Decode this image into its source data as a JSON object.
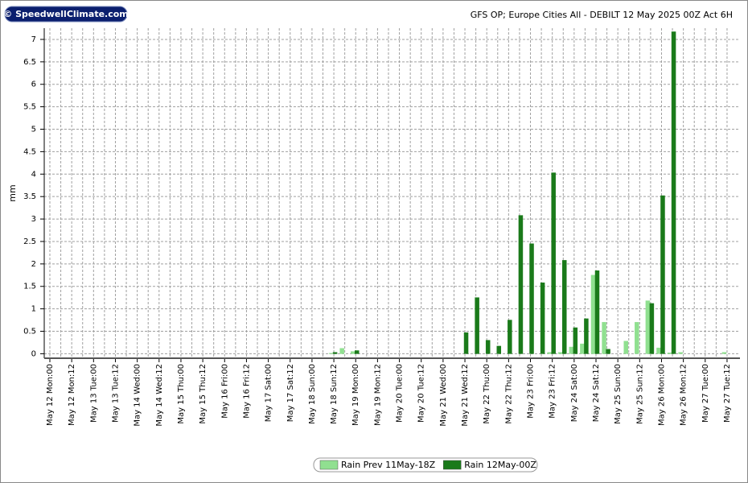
{
  "logo": "© SpeedwellClimate.com",
  "chart_data": {
    "type": "bar",
    "title": "GFS OP; Europe Cities All - DEBILT 12 May 2025 00Z Act 6H",
    "ylabel": "mm",
    "categories": [
      "May 12 Mon:00",
      null,
      "May 12 Mon:12",
      null,
      "May 13 Tue:00",
      null,
      "May 13 Tue:12",
      null,
      "May 14 Wed:00",
      null,
      "May 14 Wed:12",
      null,
      "May 15 Thu:00",
      null,
      "May 15 Thu:12",
      null,
      "May 16 Fri:00",
      null,
      "May 16 Fri:12",
      null,
      "May 17 Sat:00",
      null,
      "May 17 Sat:12",
      null,
      "May 18 Sun:00",
      null,
      "May 18 Sun:12",
      null,
      "May 19 Mon:00",
      null,
      "May 19 Mon:12",
      null,
      "May 20 Tue:00",
      null,
      "May 20 Tue:12",
      null,
      "May 21 Wed:00",
      null,
      "May 21 Wed:12",
      null,
      "May 22 Thu:00",
      null,
      "May 22 Thu:12",
      null,
      "May 23 Fri:00",
      null,
      "May 23 Fri:12",
      null,
      "May 24 Sat:00",
      null,
      "May 24 Sat:12",
      null,
      "May 25 Sun:00",
      null,
      "May 25 Sun:12",
      null,
      "May 26 Mon:00",
      null,
      "May 26 Mon:12",
      null,
      "May 27 Tue:00",
      null,
      "May 27 Tue:12"
    ],
    "series": [
      {
        "name": "Rain Prev 11May-18Z",
        "color": "#90e090",
        "values": [
          0,
          0,
          0,
          0,
          0,
          0,
          0,
          0,
          0,
          0,
          0,
          0,
          0,
          0,
          0,
          0,
          0,
          0,
          0,
          0,
          0,
          0,
          0,
          0,
          0,
          0,
          0.01,
          0.12,
          0.05,
          0,
          0,
          0,
          0,
          0,
          0,
          0,
          0,
          0,
          0,
          0,
          0,
          0,
          0,
          0,
          0,
          0,
          0.03,
          0.03,
          0.15,
          0.22,
          1.75,
          0.7,
          0,
          0.28,
          0.7,
          1.18,
          0.13,
          0.02,
          0.03,
          0,
          0,
          0,
          0.03
        ]
      },
      {
        "name": "Rain 12May-00Z",
        "color": "#1a7a1a",
        "values": [
          0,
          0,
          0,
          0,
          0,
          0,
          0,
          0,
          0,
          0,
          0,
          0,
          0,
          0,
          0,
          0,
          0,
          0,
          0,
          0,
          0,
          0,
          0,
          0,
          0,
          0,
          0.03,
          0,
          0.07,
          0,
          0,
          0,
          0,
          0,
          0,
          0,
          0,
          0,
          0.47,
          1.25,
          0.3,
          0.17,
          0.75,
          3.08,
          2.45,
          1.58,
          4.03,
          2.08,
          0.58,
          0.78,
          1.85,
          0.1,
          0,
          0,
          0,
          1.12,
          3.52,
          7.17,
          0,
          null,
          null,
          null,
          null
        ]
      }
    ],
    "ylim": [
      -0.1,
      7.25
    ],
    "yticks": [
      0,
      0.5,
      1,
      1.5,
      2,
      2.5,
      3,
      3.5,
      4,
      4.5,
      5,
      5.5,
      6,
      6.5,
      7
    ],
    "grid": true
  }
}
